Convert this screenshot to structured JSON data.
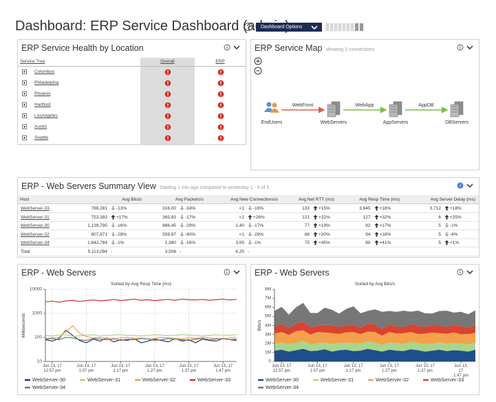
{
  "header": {
    "title": "Dashboard: ERP Service Dashboard (admin)",
    "options_button": "Dashboard Options"
  },
  "health": {
    "title": "ERP Service Health by Location",
    "columns": [
      "Service Tree",
      "Overall",
      "ERP"
    ],
    "rows": [
      "Columbus",
      "Philadelphia",
      "Phoenix",
      "Hartford",
      "LosAngeles",
      "Austin",
      "Seattle"
    ]
  },
  "service_map": {
    "title": "ERP Service Map",
    "subtitle": "showing 3 connections",
    "nodes": [
      "EndUsers",
      "WebServers",
      "AppServers",
      "DBServers"
    ],
    "edges": [
      {
        "label": "WebFront",
        "color": "#e0604f"
      },
      {
        "label": "WebApp",
        "color": "#7cc143"
      },
      {
        "label": "AppDB",
        "color": "#7cc143"
      }
    ]
  },
  "summary": {
    "title": "ERP - Web Servers Summary View",
    "subtitle": "Starting 1 min ago compared to yesterday 1 - 5 of 5",
    "columns": [
      "Host",
      "Avg Bits/s",
      "Avg Packets/s",
      "Avg New Connections/s",
      "Avg Net RTT (ms)",
      "Avg Resp Time (ms)",
      "Avg Server Delay (ms)"
    ],
    "rows": [
      {
        "host": "WebServer-33",
        "cells": [
          {
            "value": "769,281",
            "change": "-13%"
          },
          {
            "value": "316.00",
            "change": "-34%"
          },
          {
            "value": "<1",
            "change": "-19%"
          },
          {
            "value": "133",
            "change": "+15%"
          },
          {
            "value": "3,845",
            "change": "+18%"
          },
          {
            "value": "3,712",
            "change": "+18%"
          }
        ]
      },
      {
        "host": "WebServer-31",
        "cells": [
          {
            "value": "753,383",
            "change": "+17%"
          },
          {
            "value": "365.83",
            "change": "-17%"
          },
          {
            "value": "<1",
            "change": "+26%"
          },
          {
            "value": "121",
            "change": "+32%"
          },
          {
            "value": "127",
            "change": "+32%"
          },
          {
            "value": "6",
            "change": "+25%"
          }
        ]
      },
      {
        "host": "WebServer-30",
        "cells": [
          {
            "value": "1,139,795",
            "change": "-16%"
          },
          {
            "value": "886.45",
            "change": "-29%"
          },
          {
            "value": "1.40",
            "change": "-17%"
          },
          {
            "value": "77",
            "change": "+19%"
          },
          {
            "value": "82",
            "change": "+17%"
          },
          {
            "value": "5",
            "change": "-1%"
          }
        ]
      },
      {
        "host": "WebServer-32",
        "cells": [
          {
            "value": "807,871",
            "change": "-28%"
          },
          {
            "value": "559.87",
            "change": "-40%"
          },
          {
            "value": "<1",
            "change": "-29%"
          },
          {
            "value": "88",
            "change": "+20%"
          },
          {
            "value": "94",
            "change": "+18%"
          },
          {
            "value": "5",
            "change": "-4%"
          }
        ]
      },
      {
        "host": "WebServer-34",
        "cells": [
          {
            "value": "1,642,764",
            "change": "-1%"
          },
          {
            "value": "1,380",
            "change": "-16%"
          },
          {
            "value": "3.05",
            "change": "-1%"
          },
          {
            "value": "75",
            "change": "+45%"
          },
          {
            "value": "80",
            "change": "+41%"
          },
          {
            "value": "5",
            "change": "+1%"
          }
        ]
      },
      {
        "host": "Total",
        "cells": [
          {
            "value": "5,113,094",
            "change": "-"
          },
          {
            "value": "3,508",
            "change": "-"
          },
          {
            "value": "6.25",
            "change": "-"
          }
        ]
      }
    ]
  },
  "chart_data": [
    {
      "type": "line",
      "title": "ERP - Web Servers",
      "subtitle": "Sorted by Avg Resp Time (ms)",
      "y_label": "Milliseconds",
      "log_scale": true,
      "grid": true,
      "ylim": [
        10,
        10000
      ],
      "yticks": [
        10,
        100,
        1000,
        10000
      ],
      "categories": [
        null,
        "Jun 13, 17\n12:57 pm",
        null,
        null,
        null,
        null,
        "Jun 13, 17\n1:07 pm",
        null,
        null,
        null,
        null,
        "Jun 13, 17\n1:17 pm",
        null,
        null,
        null,
        null,
        "Jun 13, 17\n1:27 pm",
        null,
        null,
        null,
        null,
        "Jun 13, 17\n1:37 pm",
        null,
        null,
        null,
        null,
        "Jun 13, 17\n1:47 pm",
        null,
        null
      ],
      "series": [
        {
          "name": "WebServer-30",
          "color": "#1f3a73",
          "values": [
            80,
            70,
            90,
            200,
            120,
            75,
            60,
            85,
            70,
            95,
            65,
            80,
            75,
            90,
            60,
            70,
            85,
            75,
            65,
            90,
            70,
            80,
            60,
            85,
            75,
            70,
            90,
            80,
            75
          ]
        },
        {
          "name": "WebServer-31",
          "color": "#a8d68c",
          "values": [
            120,
            115,
            125,
            130,
            110,
            118,
            122,
            128,
            115,
            120,
            125,
            130,
            118,
            122,
            115,
            120,
            128,
            125,
            118,
            122,
            130,
            125,
            120,
            115,
            122,
            128,
            120,
            125,
            130
          ]
        },
        {
          "name": "WebServer-32",
          "color": "#f5a04a",
          "values": [
            90,
            95,
            100,
            180,
            300,
            150,
            110,
            95,
            100,
            90,
            85,
            95,
            100,
            90,
            95,
            85,
            90,
            100,
            95,
            90,
            85,
            95,
            90,
            100,
            95,
            90,
            85,
            95,
            100
          ]
        },
        {
          "name": "WebServer-33",
          "color": "#d32f2f",
          "values": [
            3000,
            3200,
            2900,
            3300,
            3500,
            3100,
            3400,
            3600,
            3300,
            3500,
            3800,
            3400,
            3600,
            3900,
            3500,
            3700,
            3400,
            3600,
            3800,
            3500,
            3900,
            3700,
            3600,
            3800,
            3500,
            3700,
            3900,
            3600,
            3800
          ]
        },
        {
          "name": "WebServer-34",
          "color": "#777777",
          "values": [
            85,
            90,
            80,
            100,
            95,
            80,
            75,
            90,
            85,
            80,
            90,
            75,
            85,
            80,
            90,
            85,
            75,
            80,
            90,
            85,
            80,
            75,
            85,
            90,
            80,
            85,
            90,
            80,
            85
          ]
        }
      ]
    },
    {
      "type": "area",
      "stacked": true,
      "title": "ERP - Web Servers",
      "subtitle": "Sorted by Avg Bits/s",
      "y_label": "Bits/s",
      "grid": false,
      "ylim": [
        0,
        8000000
      ],
      "yticks": [
        0,
        {
          "value": 1000000,
          "label": "1M"
        },
        {
          "value": 2000000,
          "label": "2M"
        },
        {
          "value": 3000000,
          "label": "3M"
        },
        {
          "value": 4000000,
          "label": "4M"
        },
        {
          "value": 5000000,
          "label": "5M"
        },
        {
          "value": 6000000,
          "label": "6M"
        },
        {
          "value": 7000000,
          "label": "7M"
        },
        {
          "value": 8000000,
          "label": "8M"
        }
      ],
      "categories": [
        null,
        "Jun 13, 17\n12:57 pm",
        null,
        null,
        null,
        null,
        "Jun 13, 17\n1:07 pm",
        null,
        null,
        null,
        null,
        "Jun 13, 17\n1:17 pm",
        null,
        null,
        null,
        null,
        "Jun 13, 17\n1:27 pm",
        null,
        null,
        null,
        null,
        "Jun 13, 17\n1:37 pm",
        null,
        null,
        null,
        null,
        "Jun 13, 17\n1:47 pm",
        null,
        null
      ],
      "series": [
        {
          "name": "WebServer-30",
          "color": "#1f4e8c",
          "values": [
            1200000,
            1300000,
            1100000,
            1250000,
            1400000,
            1150000,
            1200000,
            1350000,
            1100000,
            1250000,
            1300000,
            1150000,
            1200000,
            1400000,
            1250000,
            1100000,
            1300000,
            1200000,
            1150000,
            1350000,
            1250000,
            1100000,
            1200000,
            1300000,
            1150000,
            1250000,
            1200000,
            1100000,
            1300000
          ]
        },
        {
          "name": "WebServer-31",
          "color": "#a8d68c",
          "values": [
            800000,
            750000,
            850000,
            800000,
            900000,
            780000,
            820000,
            760000,
            840000,
            800000,
            770000,
            860000,
            790000,
            810000,
            830000,
            760000,
            800000,
            850000,
            780000,
            820000,
            790000,
            840000,
            760000,
            800000,
            830000,
            770000,
            810000,
            790000,
            820000
          ]
        },
        {
          "name": "WebServer-32",
          "color": "#f5a04a",
          "values": [
            1100000,
            1200000,
            1000000,
            1300000,
            1150000,
            1050000,
            1250000,
            1100000,
            1200000,
            1000000,
            1150000,
            1250000,
            1050000,
            1100000,
            1200000,
            1000000,
            1150000,
            1050000,
            1200000,
            1100000,
            1000000,
            1150000,
            1250000,
            1050000,
            1100000,
            1200000,
            1000000,
            1150000,
            1050000
          ]
        },
        {
          "name": "WebServer-33",
          "color": "#d9432f",
          "values": [
            800000,
            900000,
            750000,
            850000,
            950000,
            800000,
            700000,
            850000,
            900000,
            750000,
            800000,
            850000,
            700000,
            900000,
            800000,
            750000,
            850000,
            800000,
            700000,
            850000,
            900000,
            750000,
            800000,
            850000,
            750000,
            800000,
            900000,
            700000,
            800000
          ]
        },
        {
          "name": "WebServer-34",
          "color": "#777777",
          "values": [
            1700000,
            1900000,
            1500000,
            1800000,
            2100000,
            1600000,
            1400000,
            1900000,
            1700000,
            1500000,
            1800000,
            2000000,
            1600000,
            1400000,
            1700000,
            1900000,
            1500000,
            1600000,
            1800000,
            1400000,
            1700000,
            1500000,
            1300000,
            1600000,
            1800000,
            1400000,
            1600000,
            1500000,
            1700000
          ]
        }
      ]
    }
  ]
}
